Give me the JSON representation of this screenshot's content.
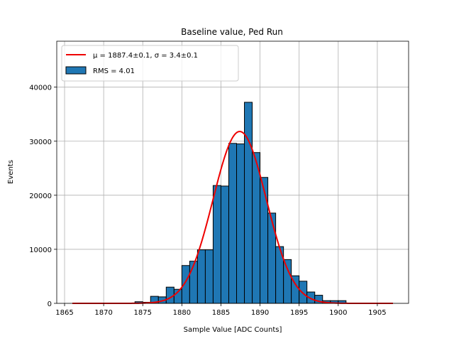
{
  "chart_data": {
    "type": "bar",
    "title": "Baseline value, Ped Run",
    "xlabel": "Sample Value [ADC Counts]",
    "ylabel": "Events",
    "xlim": [
      1864,
      1909
    ],
    "ylim": [
      0,
      48500
    ],
    "xticks": [
      1865,
      1870,
      1875,
      1880,
      1885,
      1890,
      1895,
      1900,
      1905
    ],
    "yticks": [
      0,
      10000,
      20000,
      30000,
      40000
    ],
    "grid": true,
    "legend_position": "top-left",
    "bin_width": 1,
    "bins": [
      {
        "x": 1874,
        "value": 300
      },
      {
        "x": 1875,
        "value": 200
      },
      {
        "x": 1876,
        "value": 1300
      },
      {
        "x": 1877,
        "value": 1200
      },
      {
        "x": 1878,
        "value": 3000
      },
      {
        "x": 1879,
        "value": 2600
      },
      {
        "x": 1880,
        "value": 7000
      },
      {
        "x": 1881,
        "value": 7800
      },
      {
        "x": 1882,
        "value": 9900
      },
      {
        "x": 1883,
        "value": 9900
      },
      {
        "x": 1884,
        "value": 21800
      },
      {
        "x": 1885,
        "value": 21700
      },
      {
        "x": 1886,
        "value": 29600
      },
      {
        "x": 1887,
        "value": 29500
      },
      {
        "x": 1888,
        "value": 37200
      },
      {
        "x": 1889,
        "value": 27900
      },
      {
        "x": 1890,
        "value": 23300
      },
      {
        "x": 1891,
        "value": 16700
      },
      {
        "x": 1892,
        "value": 10500
      },
      {
        "x": 1893,
        "value": 8100
      },
      {
        "x": 1894,
        "value": 5100
      },
      {
        "x": 1895,
        "value": 4100
      },
      {
        "x": 1896,
        "value": 2100
      },
      {
        "x": 1897,
        "value": 1500
      },
      {
        "x": 1898,
        "value": 500
      },
      {
        "x": 1899,
        "value": 500
      },
      {
        "x": 1900,
        "value": 500
      }
    ],
    "fit": {
      "mu": 1887.4,
      "sigma": 3.4,
      "amplitude": 31800,
      "x_range": [
        1866,
        1907
      ],
      "color": "#ee0000"
    },
    "bar_color": "#1f77b4",
    "bar_edge_color": "#000000",
    "series": [
      {
        "name": "μ = 1887.4±0.1, σ = 3.4±0.1",
        "kind": "line",
        "color": "#ee0000"
      },
      {
        "name": "RMS = 4.01",
        "kind": "bar",
        "color": "#1f77b4"
      }
    ]
  }
}
